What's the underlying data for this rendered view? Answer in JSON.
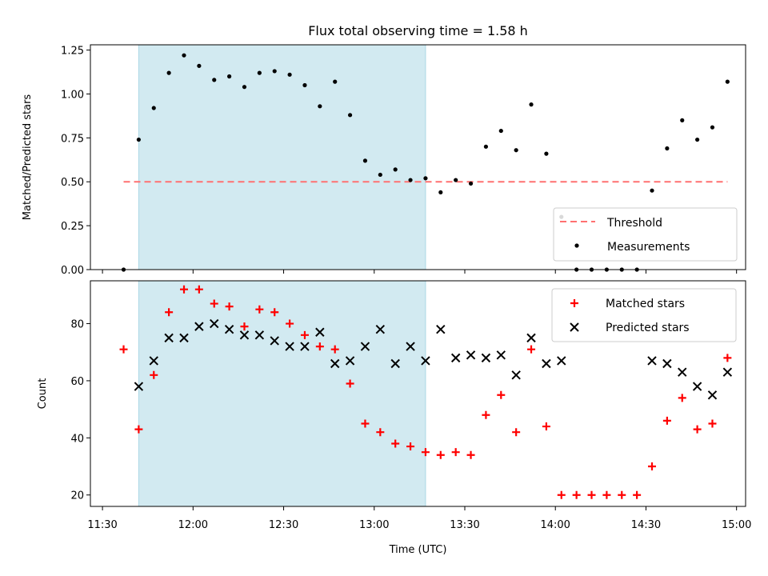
{
  "chart_data": [
    {
      "type": "scatter",
      "title": "Flux total observing time = 1.58 h",
      "ylabel": "Matched/Predicted stars",
      "xlabel": "",
      "xlim": [
        "11:26",
        "15:03"
      ],
      "ylim": [
        0,
        1.28
      ],
      "yticks": [
        "0.00",
        "0.25",
        "0.50",
        "0.75",
        "1.00",
        "1.25"
      ],
      "shaded_span": [
        "11:42",
        "13:17"
      ],
      "shaded_color": "#add8e6",
      "threshold": {
        "name": "Threshold",
        "value": 0.5,
        "x_range": [
          "11:37",
          "14:57"
        ],
        "color": "#ff7070",
        "style": "dashed"
      },
      "series": [
        {
          "name": "Measurements",
          "color": "#000000",
          "marker": "dot",
          "x": [
            "11:37",
            "11:42",
            "11:47",
            "11:52",
            "11:57",
            "12:02",
            "12:07",
            "12:12",
            "12:17",
            "12:22",
            "12:27",
            "12:32",
            "12:37",
            "12:42",
            "12:47",
            "12:52",
            "12:57",
            "13:02",
            "13:07",
            "13:12",
            "13:17",
            "13:22",
            "13:27",
            "13:32",
            "13:37",
            "13:42",
            "13:47",
            "13:52",
            "13:57",
            "14:02",
            "14:07",
            "14:12",
            "14:17",
            "14:22",
            "14:27",
            "14:32",
            "14:37",
            "14:42",
            "14:47",
            "14:52",
            "14:57"
          ],
          "y": [
            0.0,
            0.74,
            0.92,
            1.12,
            1.22,
            1.16,
            1.08,
            1.1,
            1.04,
            1.12,
            1.13,
            1.11,
            1.05,
            0.93,
            1.07,
            0.88,
            0.62,
            0.54,
            0.57,
            0.51,
            0.52,
            0.44,
            0.51,
            0.49,
            0.7,
            0.79,
            0.68,
            0.94,
            0.66,
            0.3,
            0.0,
            0.0,
            0.0,
            0.0,
            0.0,
            0.45,
            0.69,
            0.85,
            0.74,
            0.81,
            1.07
          ]
        }
      ],
      "legend": {
        "placement": "lower-right",
        "entries": [
          "Threshold",
          "Measurements"
        ]
      }
    },
    {
      "type": "scatter",
      "title": "",
      "ylabel": "Count",
      "xlabel": "Time (UTC)",
      "xlim": [
        "11:26",
        "15:03"
      ],
      "ylim": [
        16,
        95
      ],
      "yticks": [
        "20",
        "40",
        "60",
        "80"
      ],
      "xticks": [
        "11:30",
        "12:00",
        "12:30",
        "13:00",
        "13:30",
        "14:00",
        "14:30",
        "15:00"
      ],
      "shaded_span": [
        "11:42",
        "13:17"
      ],
      "shaded_color": "#add8e6",
      "series": [
        {
          "name": "Matched stars",
          "color": "#ff0000",
          "marker": "plus",
          "x": [
            "11:37",
            "11:42",
            "11:47",
            "11:52",
            "11:57",
            "12:02",
            "12:07",
            "12:12",
            "12:17",
            "12:22",
            "12:27",
            "12:32",
            "12:37",
            "12:42",
            "12:47",
            "12:52",
            "12:57",
            "13:02",
            "13:07",
            "13:12",
            "13:17",
            "13:22",
            "13:27",
            "13:32",
            "13:37",
            "13:42",
            "13:47",
            "13:52",
            "13:57",
            "14:02",
            "14:07",
            "14:12",
            "14:17",
            "14:22",
            "14:27",
            "14:32",
            "14:37",
            "14:42",
            "14:47",
            "14:52",
            "14:57"
          ],
          "y": [
            71,
            43,
            62,
            84,
            92,
            92,
            87,
            86,
            79,
            85,
            84,
            80,
            76,
            72,
            71,
            59,
            45,
            42,
            38,
            37,
            35,
            34,
            35,
            34,
            48,
            55,
            42,
            71,
            44,
            20,
            20,
            20,
            20,
            20,
            20,
            30,
            46,
            54,
            43,
            45,
            68
          ]
        },
        {
          "name": "Predicted stars",
          "color": "#000000",
          "marker": "x",
          "x": [
            "11:42",
            "11:47",
            "11:52",
            "11:57",
            "12:02",
            "12:07",
            "12:12",
            "12:17",
            "12:22",
            "12:27",
            "12:32",
            "12:37",
            "12:42",
            "12:47",
            "12:52",
            "12:57",
            "13:02",
            "13:07",
            "13:12",
            "13:17",
            "13:22",
            "13:27",
            "13:32",
            "13:37",
            "13:42",
            "13:47",
            "13:52",
            "13:57",
            "14:02",
            "14:32",
            "14:37",
            "14:42",
            "14:47",
            "14:52",
            "14:57"
          ],
          "y": [
            58,
            67,
            75,
            75,
            79,
            80,
            78,
            76,
            76,
            74,
            72,
            72,
            77,
            66,
            67,
            72,
            78,
            66,
            72,
            67,
            78,
            68,
            69,
            68,
            69,
            62,
            75,
            66,
            67,
            67,
            66,
            63,
            58,
            55,
            63
          ]
        }
      ],
      "legend": {
        "placement": "top-right",
        "entries": [
          "Matched stars",
          "Predicted stars"
        ]
      }
    }
  ]
}
